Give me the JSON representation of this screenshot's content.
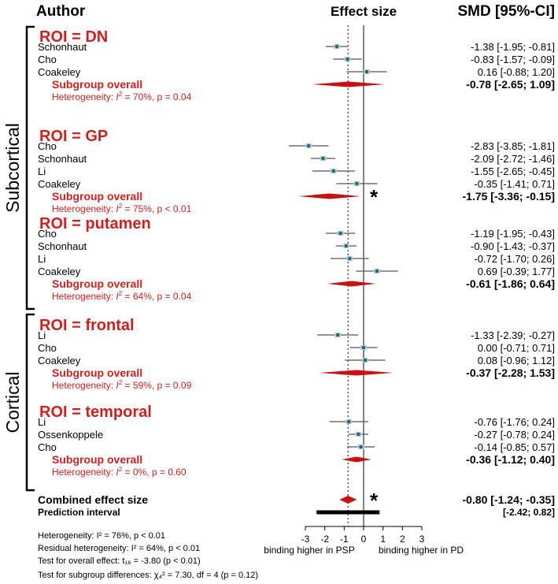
{
  "header": {
    "author": "Author",
    "effect_size": "Effect size",
    "smd": "SMD [95%-CI]"
  },
  "group_labels": {
    "subcortical": "Subcortical",
    "cortical": "Cortical"
  },
  "colors": {
    "title_red": "#d11f1f",
    "marker_blue": "#0d6e8e",
    "diamond_red": "#cc1010",
    "line_gray": "#555555"
  },
  "subgroups": [
    {
      "title": "ROI = DN",
      "studies": [
        {
          "name": "Schonhaut",
          "est": -1.38,
          "lo": -1.95,
          "hi": -0.81,
          "text": "-1.38 [-1.95; -0.81]"
        },
        {
          "name": "Cho",
          "est": -0.83,
          "lo": -1.57,
          "hi": -0.09,
          "text": "-0.83 [-1.57; -0.09]"
        },
        {
          "name": "Coakeley",
          "est": 0.16,
          "lo": -0.88,
          "hi": 1.2,
          "text": "0.16 [-0.88;  1.20]"
        }
      ],
      "overall": {
        "label": "Subgroup overall",
        "est": -0.78,
        "lo": -2.65,
        "hi": 1.09,
        "text": "-0.78 [-2.65;  1.09]",
        "star": false
      },
      "heterogeneity": {
        "prefix": "Heterogeneity: ",
        "i": "I",
        "sup": "2",
        "rest": " = 70%, p = 0.04"
      }
    },
    {
      "title": "ROI = GP",
      "studies": [
        {
          "name": "Cho",
          "est": -2.83,
          "lo": -3.85,
          "hi": -1.81,
          "text": "-2.83 [-3.85; -1.81]"
        },
        {
          "name": "Schonhaut",
          "est": -2.09,
          "lo": -2.72,
          "hi": -1.46,
          "text": "-2.09 [-2.72; -1.46]"
        },
        {
          "name": "Li",
          "est": -1.55,
          "lo": -2.65,
          "hi": -0.45,
          "text": "-1.55 [-2.65; -0.45]"
        },
        {
          "name": "Coakeley",
          "est": -0.35,
          "lo": -1.41,
          "hi": 0.71,
          "text": "-0.35 [-1.41;  0.71]"
        }
      ],
      "overall": {
        "label": "Subgroup overall",
        "est": -1.75,
        "lo": -3.36,
        "hi": -0.15,
        "text": "-1.75 [-3.36; -0.15]",
        "star": true
      },
      "heterogeneity": {
        "prefix": "Heterogeneity: ",
        "i": "I",
        "sup": "2",
        "rest": " = 75%, p < 0.01"
      }
    },
    {
      "title": "ROI = putamen",
      "studies": [
        {
          "name": "Cho",
          "est": -1.19,
          "lo": -1.95,
          "hi": -0.43,
          "text": "-1.19 [-1.95; -0.43]"
        },
        {
          "name": "Schonhaut",
          "est": -0.9,
          "lo": -1.43,
          "hi": -0.37,
          "text": "-0.90 [-1.43; -0.37]"
        },
        {
          "name": "Li",
          "est": -0.72,
          "lo": -1.7,
          "hi": 0.26,
          "text": "-0.72 [-1.70;  0.26]"
        },
        {
          "name": "Coakeley",
          "est": 0.69,
          "lo": -0.39,
          "hi": 1.77,
          "text": "0.69 [-0.39;  1.77]"
        }
      ],
      "overall": {
        "label": "Subgroup overall",
        "est": -0.61,
        "lo": -1.86,
        "hi": 0.64,
        "text": "-0.61 [-1.86;  0.64]",
        "star": false
      },
      "heterogeneity": {
        "prefix": "Heterogeneity: ",
        "i": "I",
        "sup": "2",
        "rest": " = 64%, p = 0.04"
      }
    },
    {
      "title": "ROI = frontal",
      "studies": [
        {
          "name": "Li",
          "est": -1.33,
          "lo": -2.39,
          "hi": -0.27,
          "text": "-1.33 [-2.39; -0.27]"
        },
        {
          "name": "Cho",
          "est": 0.0,
          "lo": -0.71,
          "hi": 0.71,
          "text": "0.00 [-0.71;  0.71]"
        },
        {
          "name": "Coakeley",
          "est": 0.08,
          "lo": -0.96,
          "hi": 1.12,
          "text": "0.08 [-0.96;  1.12]"
        }
      ],
      "overall": {
        "label": "Subgroup overall",
        "est": -0.37,
        "lo": -2.28,
        "hi": 1.53,
        "text": "-0.37 [-2.28;  1.53]",
        "star": false
      },
      "heterogeneity": {
        "prefix": "Heterogeneity: ",
        "i": "I",
        "sup": "2",
        "rest": " = 59%, p = 0.09"
      }
    },
    {
      "title": "ROI = temporal",
      "studies": [
        {
          "name": "Li",
          "est": -0.76,
          "lo": -1.76,
          "hi": 0.24,
          "text": "-0.76 [-1.76;  0.24]"
        },
        {
          "name": "Ossenkoppele",
          "est": -0.27,
          "lo": -0.78,
          "hi": 0.24,
          "text": "-0.27 [-0.78;  0.24]"
        },
        {
          "name": "Cho",
          "est": -0.14,
          "lo": -0.85,
          "hi": 0.57,
          "text": "-0.14 [-0.85;  0.57]"
        }
      ],
      "overall": {
        "label": "Subgroup overall",
        "est": -0.36,
        "lo": -1.12,
        "hi": 0.4,
        "text": "-0.36 [-1.12;  0.40]",
        "star": false
      },
      "heterogeneity": {
        "prefix": "Heterogeneity: ",
        "i": "I",
        "sup": "2",
        "rest": " = 0%, p = 0.60"
      }
    }
  ],
  "combined": {
    "label": "Combined effect size",
    "est": -0.8,
    "lo": -1.24,
    "hi": -0.35,
    "text": "-0.80 [-1.24; -0.35]",
    "star": true
  },
  "prediction": {
    "label": "Prediction interval",
    "lo": -2.42,
    "hi": 0.82,
    "text": "[-2.42;  0.82]"
  },
  "axis": {
    "ticks": [
      -3,
      -2,
      -1,
      0,
      1,
      2,
      3
    ],
    "range": [
      -3,
      3
    ],
    "left_label": "binding higher in PSP",
    "right_label": "binding higher in PD",
    "ref_solid": 0,
    "ref_dotted": -0.8
  },
  "footer": {
    "line1": "Heterogeneity: I² = 76%, p < 0.01",
    "line2": "Residual heterogeneity: I² = 64%, p < 0.01",
    "line3": "Test for overall effect: t₁₆ = -3.80 (p < 0.01)",
    "line4": "Test for subgroup differences: χ₄² = 7.30, df = 4 (p = 0.12)"
  },
  "chart_data": {
    "type": "scatter",
    "title": "",
    "xlabel": "Effect size",
    "ylabel": "",
    "xlim": [
      -3,
      3
    ],
    "grid": false,
    "series": [
      {
        "name": "ROI = DN",
        "values": [
          -1.38,
          -0.83,
          0.16
        ],
        "overall": -0.78
      },
      {
        "name": "ROI = GP",
        "values": [
          -2.83,
          -2.09,
          -1.55,
          -0.35
        ],
        "overall": -1.75
      },
      {
        "name": "ROI = putamen",
        "values": [
          -1.19,
          -0.9,
          -0.72,
          0.69
        ],
        "overall": -0.61
      },
      {
        "name": "ROI = frontal",
        "values": [
          -1.33,
          0.0,
          0.08
        ],
        "overall": -0.37
      },
      {
        "name": "ROI = temporal",
        "values": [
          -0.76,
          -0.27,
          -0.14
        ],
        "overall": -0.36
      }
    ],
    "combined": -0.8
  }
}
